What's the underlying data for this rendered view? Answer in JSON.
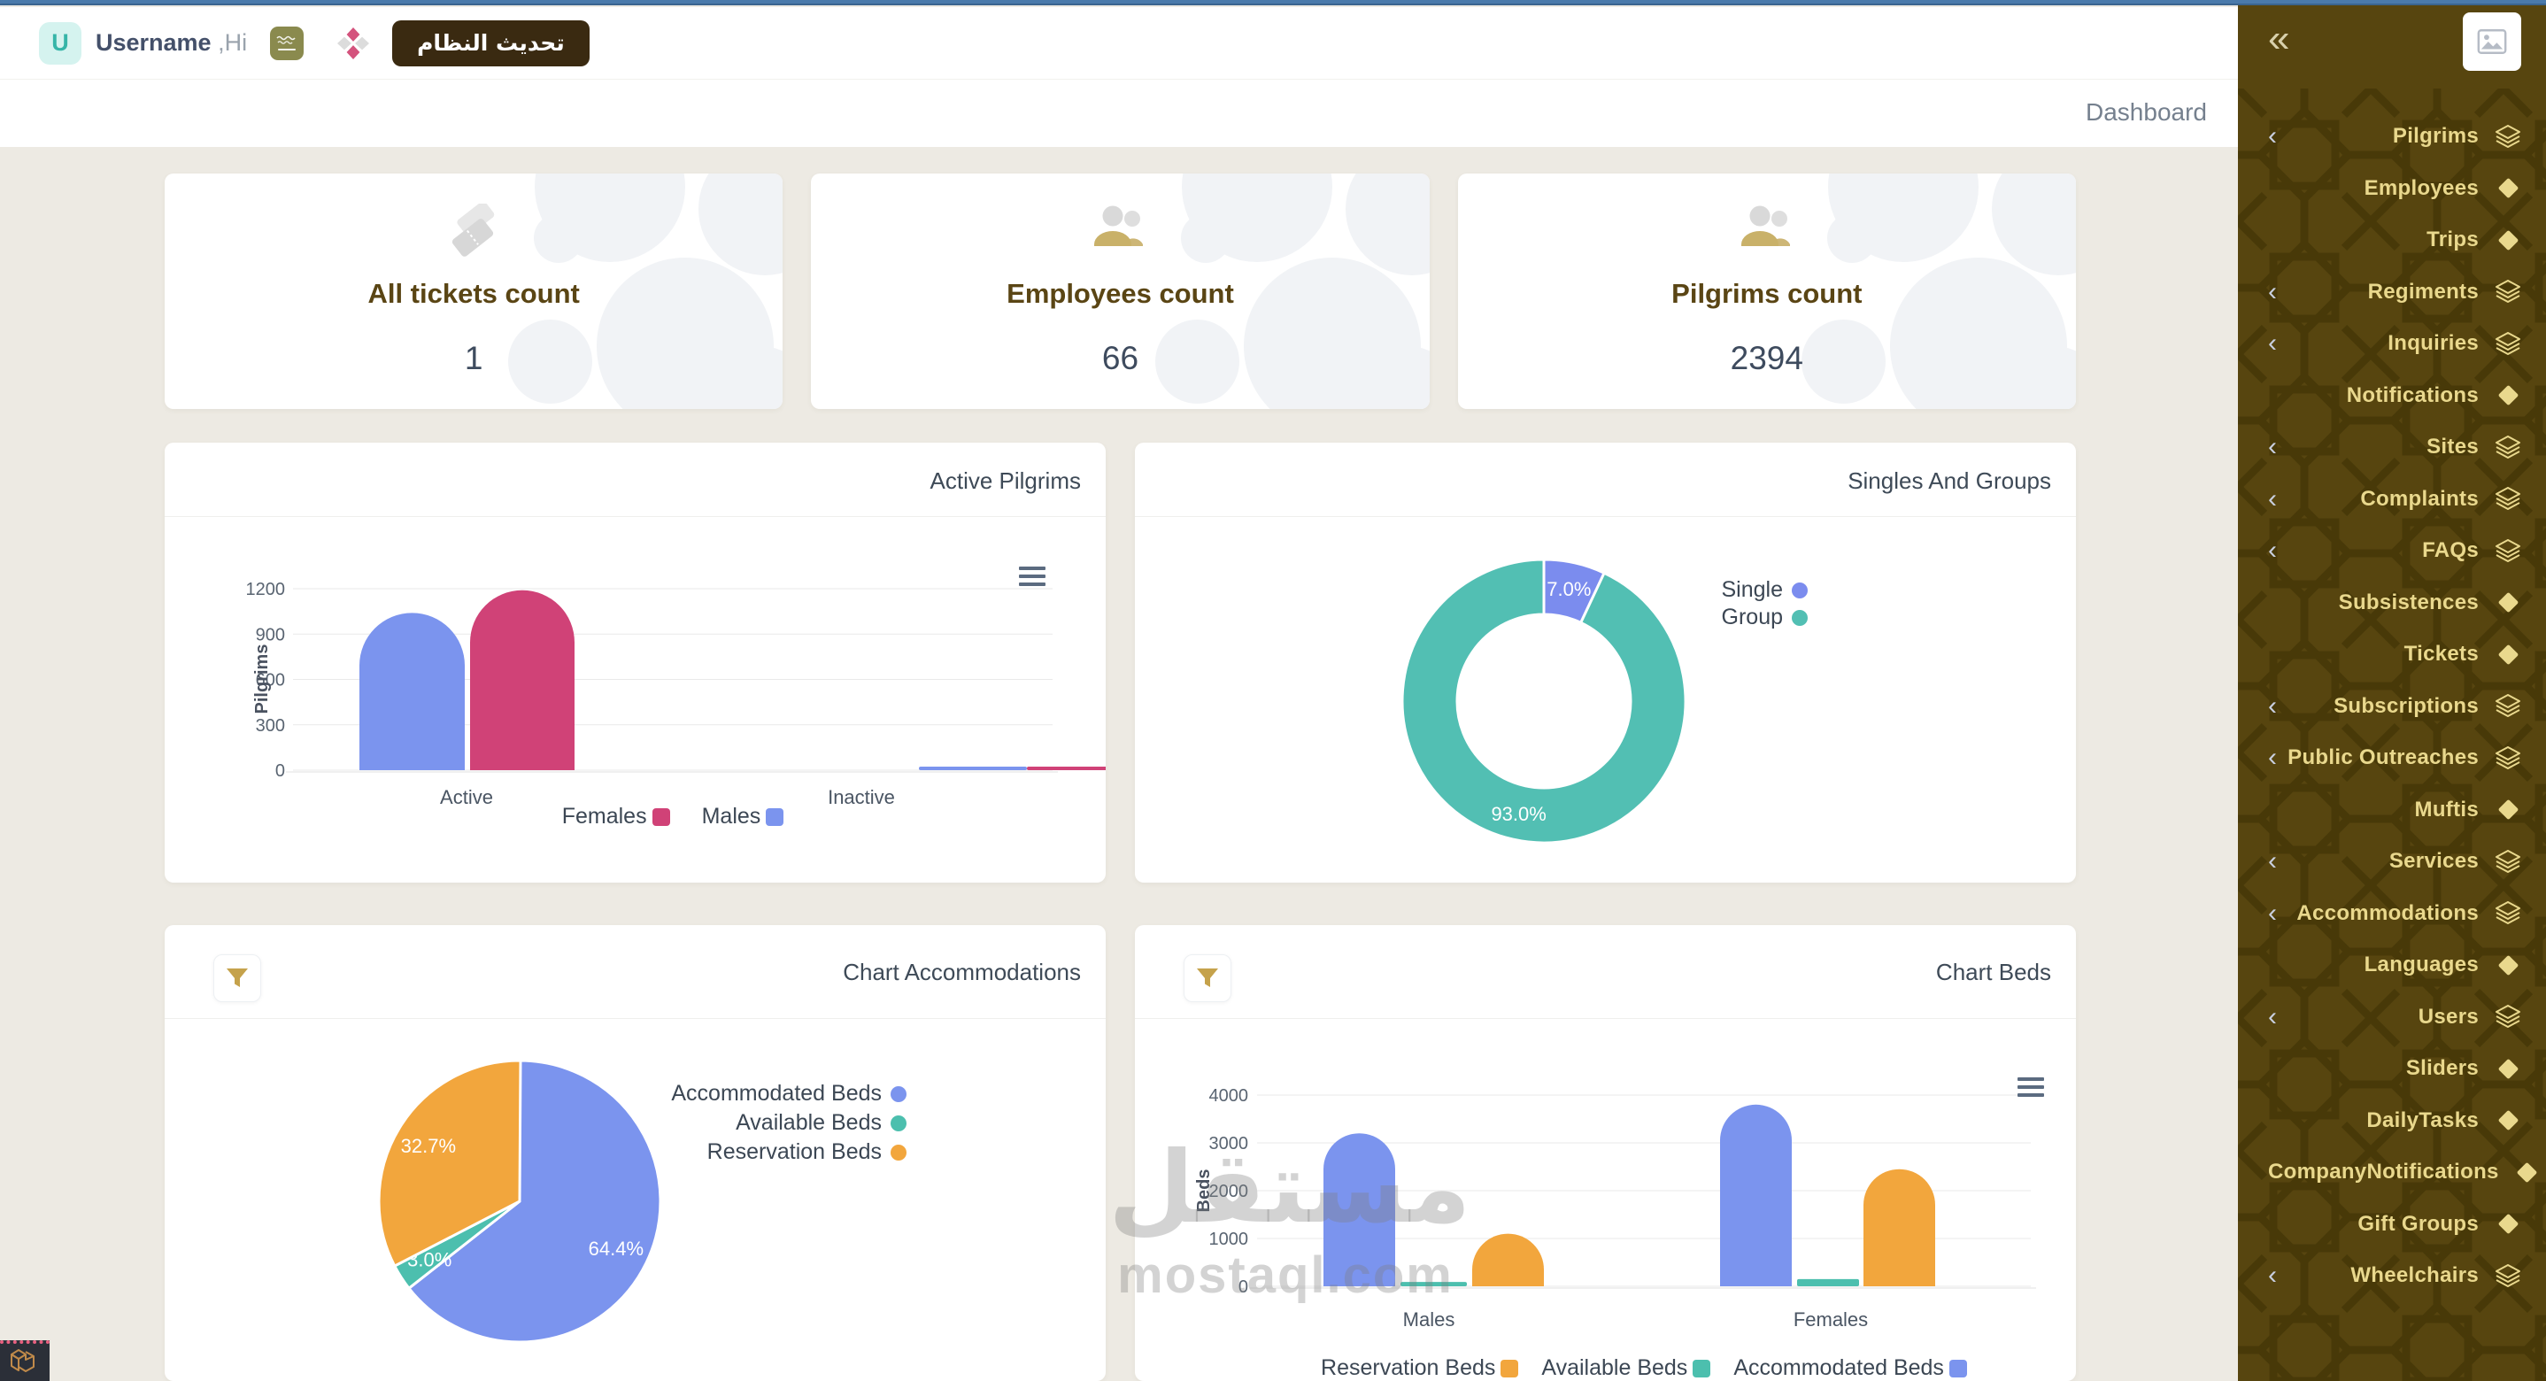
{
  "header": {
    "avatar_letter": "U",
    "username": "Username",
    "greeting": " ,Hi",
    "update_button_label": "تحديث النظام"
  },
  "breadcrumb": "Dashboard",
  "watermark": {
    "arabic": "مستقل",
    "latin": "mostaql.com"
  },
  "stats": [
    {
      "title": "All tickets count",
      "value": "1",
      "icon": "tickets-icon"
    },
    {
      "title": "Employees count",
      "value": "66",
      "icon": "people-icon"
    },
    {
      "title": "Pilgrims count",
      "value": "2394",
      "icon": "people-icon"
    }
  ],
  "sidebar": {
    "items": [
      {
        "label": "Pilgrims",
        "icon": "layers",
        "expandable": true
      },
      {
        "label": "Employees",
        "icon": "diamond",
        "expandable": false
      },
      {
        "label": "Trips",
        "icon": "diamond",
        "expandable": false
      },
      {
        "label": "Regiments",
        "icon": "layers",
        "expandable": true
      },
      {
        "label": "Inquiries",
        "icon": "layers",
        "expandable": true
      },
      {
        "label": "Notifications",
        "icon": "diamond",
        "expandable": false
      },
      {
        "label": "Sites",
        "icon": "layers",
        "expandable": true
      },
      {
        "label": "Complaints",
        "icon": "layers",
        "expandable": true
      },
      {
        "label": "FAQs",
        "icon": "layers",
        "expandable": true
      },
      {
        "label": "Subsistences",
        "icon": "diamond",
        "expandable": false
      },
      {
        "label": "Tickets",
        "icon": "diamond",
        "expandable": false
      },
      {
        "label": "Subscriptions",
        "icon": "layers",
        "expandable": true
      },
      {
        "label": "Public Outreaches",
        "icon": "layers",
        "expandable": true
      },
      {
        "label": "Muftis",
        "icon": "diamond",
        "expandable": false
      },
      {
        "label": "Services",
        "icon": "layers",
        "expandable": true
      },
      {
        "label": "Accommodations",
        "icon": "layers",
        "expandable": true
      },
      {
        "label": "Languages",
        "icon": "diamond",
        "expandable": false
      },
      {
        "label": "Users",
        "icon": "layers",
        "expandable": true
      },
      {
        "label": "Sliders",
        "icon": "diamond",
        "expandable": false
      },
      {
        "label": "DailyTasks",
        "icon": "diamond",
        "expandable": false
      },
      {
        "label": "CompanyNotifications",
        "icon": "diamond",
        "expandable": false
      },
      {
        "label": "Gift Groups",
        "icon": "diamond",
        "expandable": false
      },
      {
        "label": "Wheelchairs",
        "icon": "layers",
        "expandable": true
      }
    ]
  },
  "chart_data": [
    {
      "id": "active-pilgrims",
      "type": "bar",
      "title": "Active Pilgrims",
      "xlabel": "",
      "ylabel": "Pilgrims",
      "categories": [
        "Active",
        "Inactive"
      ],
      "series": [
        {
          "name": "Males",
          "color": "#7b94ee",
          "values": [
            1040,
            20
          ]
        },
        {
          "name": "Females",
          "color": "#d04277",
          "values": [
            1190,
            15
          ]
        }
      ],
      "ylim": [
        0,
        1200
      ],
      "yticks": [
        0,
        300,
        600,
        900,
        1200
      ],
      "grid": true,
      "legend_position": "bottom",
      "legend_order": [
        "Females",
        "Males"
      ]
    },
    {
      "id": "singles-and-groups",
      "type": "pie",
      "subtype": "donut",
      "title": "Singles And Groups",
      "legend_position": "right",
      "slices": [
        {
          "label": "Single",
          "value": 7.0,
          "color": "#7b8cee"
        },
        {
          "label": "Group",
          "value": 93.0,
          "color": "#52bfb3"
        }
      ]
    },
    {
      "id": "chart-accommodations",
      "type": "pie",
      "subtype": "pie",
      "title": "Chart Accommodations",
      "legend_position": "right",
      "slices": [
        {
          "label": "Accommodated Beds",
          "value": 64.4,
          "color": "#7b94ee"
        },
        {
          "label": "Available Beds",
          "value": 3.0,
          "color": "#4cbfae"
        },
        {
          "label": "Reservation Beds",
          "value": 32.7,
          "color": "#f2a63d"
        }
      ]
    },
    {
      "id": "chart-beds",
      "type": "bar",
      "title": "Chart Beds",
      "xlabel": "",
      "ylabel": "Beds",
      "categories": [
        "Males",
        "Females"
      ],
      "series": [
        {
          "name": "Accommodated Beds",
          "color": "#7b94ee",
          "values": [
            3200,
            3800
          ]
        },
        {
          "name": "Available Beds",
          "color": "#4cbfae",
          "values": [
            90,
            150
          ]
        },
        {
          "name": "Reservation Beds",
          "color": "#f2a63d",
          "values": [
            1100,
            2450
          ]
        }
      ],
      "ylim": [
        0,
        4000
      ],
      "yticks": [
        0,
        1000,
        2000,
        3000,
        4000
      ],
      "grid": true,
      "legend_position": "bottom",
      "legend_order": [
        "Reservation Beds",
        "Available Beds",
        "Accommodated Beds"
      ]
    }
  ]
}
